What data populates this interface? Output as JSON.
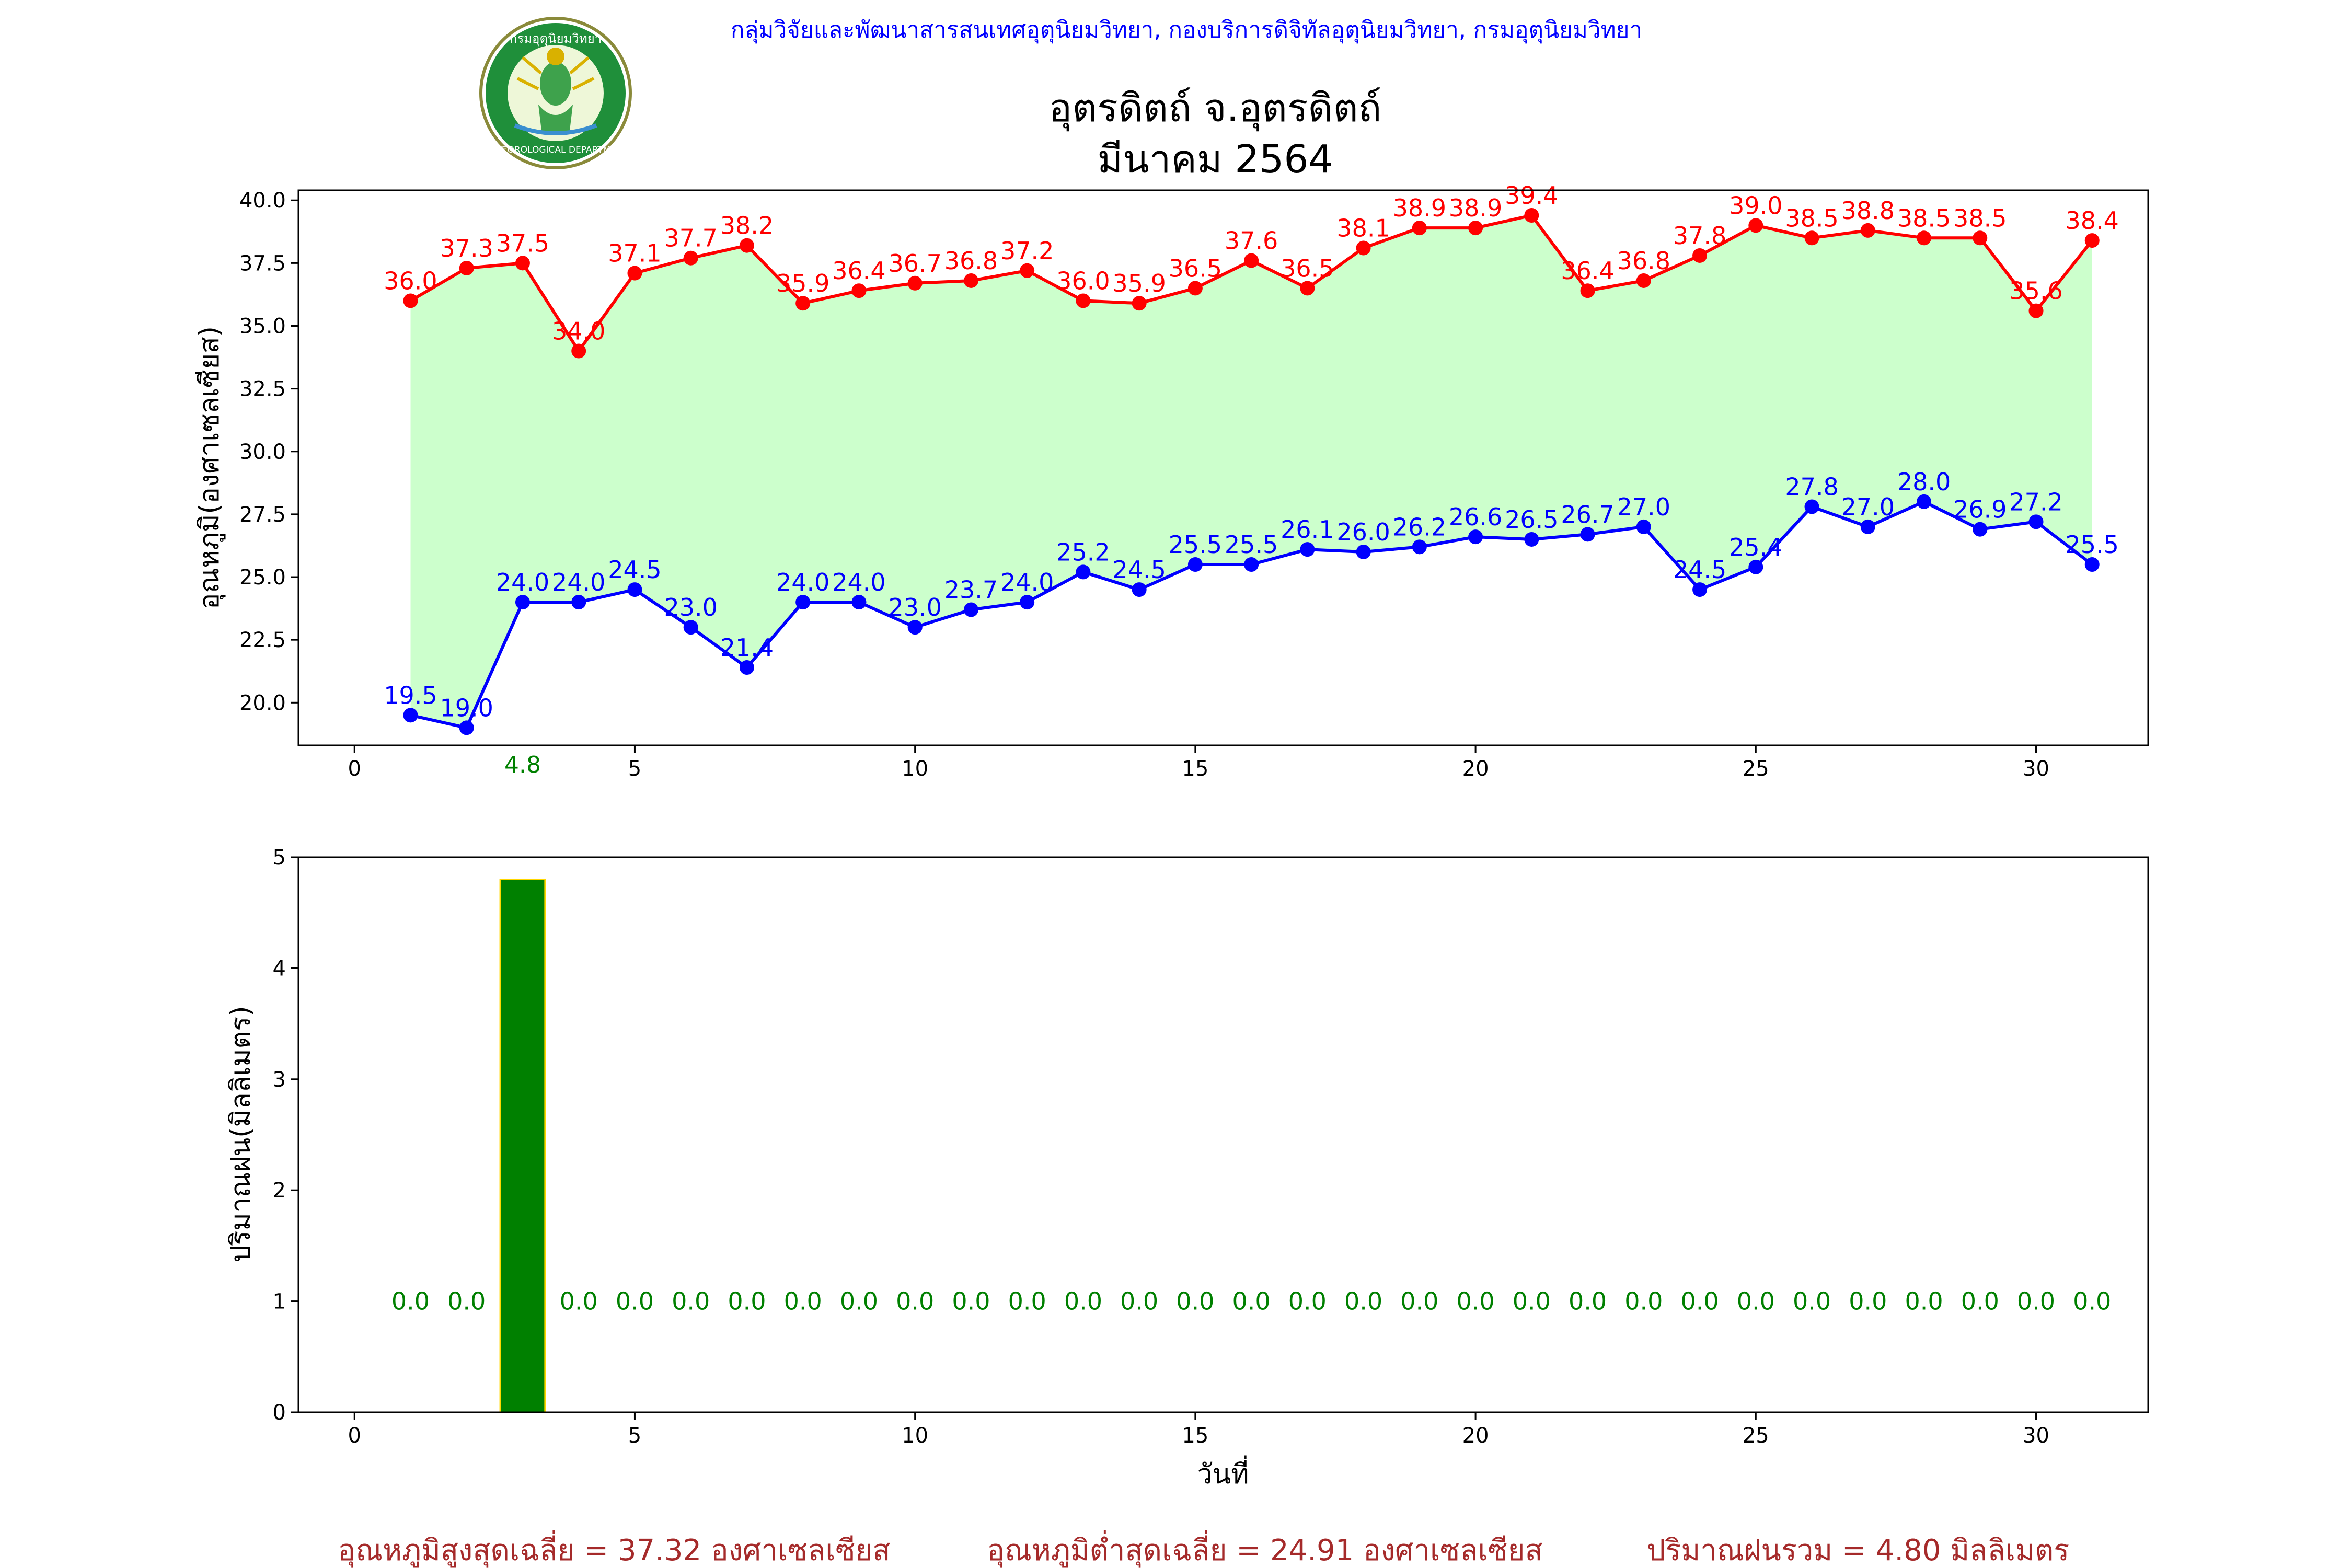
{
  "header": {
    "organization": "กลุ่มวิจัยและพัฒนาสารสนเทศอุตุนิยมวิทยา, กองบริการดิจิทัลอุตุนิยมวิทยา, กรมอุตุนิยมวิทยา",
    "station": "อุตรดิตถ์ จ.อุตรดิตถ์",
    "period": "มีนาคม 2564",
    "logo_text_top": "กรมอุตุนิยมวิทยา",
    "logo_text_bottom": "METEOROLOGICAL DEPARTMENT"
  },
  "colors": {
    "max_series": "#ff0000",
    "min_series": "#0000ff",
    "fill": "#ccffcc",
    "rain_bar": "#008000",
    "rain_edge": "#ffd700",
    "rain_label": "#008000",
    "header_text": "#0000ff",
    "summary_text": "#a52a2a"
  },
  "chart_data": [
    {
      "type": "line",
      "ylabel": "อุณหภูมิ(องศาเซลเซียส)",
      "xlim": [
        -1,
        32
      ],
      "ylim": [
        18.3,
        40.4
      ],
      "xticks": [
        0,
        5,
        10,
        15,
        20,
        25,
        30
      ],
      "yticks": [
        20.0,
        22.5,
        25.0,
        27.5,
        30.0,
        32.5,
        35.0,
        37.5,
        40.0
      ],
      "x": [
        1,
        2,
        3,
        4,
        5,
        6,
        7,
        8,
        9,
        10,
        11,
        12,
        13,
        14,
        15,
        16,
        17,
        18,
        19,
        20,
        21,
        22,
        23,
        24,
        25,
        26,
        27,
        28,
        29,
        30,
        31
      ],
      "series": [
        {
          "key": "max",
          "values": [
            36.0,
            37.3,
            37.5,
            34.0,
            37.1,
            37.7,
            38.2,
            35.9,
            36.4,
            36.7,
            36.8,
            37.2,
            36.0,
            35.9,
            36.5,
            37.6,
            36.5,
            38.1,
            38.9,
            38.9,
            39.4,
            36.4,
            36.8,
            37.8,
            39.0,
            38.5,
            38.8,
            38.5,
            38.5,
            35.6,
            38.4
          ]
        },
        {
          "key": "min",
          "values": [
            19.5,
            19.0,
            24.0,
            24.0,
            24.5,
            23.0,
            21.4,
            24.0,
            24.0,
            23.0,
            23.7,
            24.0,
            25.2,
            24.5,
            25.5,
            25.5,
            26.1,
            26.0,
            26.2,
            26.6,
            26.5,
            26.7,
            27.0,
            24.5,
            25.4,
            27.8,
            27.0,
            28.0,
            26.9,
            27.2,
            25.5
          ]
        }
      ],
      "annotation": {
        "x": 3,
        "text": "4.8"
      }
    },
    {
      "type": "bar",
      "xlabel": "วันที่",
      "ylabel": "ปริมาณฝน(มิลลิเมตร)",
      "xlim": [
        -1,
        32
      ],
      "ylim": [
        0,
        5
      ],
      "xticks": [
        0,
        5,
        10,
        15,
        20,
        25,
        30
      ],
      "yticks": [
        0,
        1,
        2,
        3,
        4,
        5
      ],
      "x": [
        1,
        2,
        3,
        4,
        5,
        6,
        7,
        8,
        9,
        10,
        11,
        12,
        13,
        14,
        15,
        16,
        17,
        18,
        19,
        20,
        21,
        22,
        23,
        24,
        25,
        26,
        27,
        28,
        29,
        30,
        31
      ],
      "values": [
        0.0,
        0.0,
        4.8,
        0.0,
        0.0,
        0.0,
        0.0,
        0.0,
        0.0,
        0.0,
        0.0,
        0.0,
        0.0,
        0.0,
        0.0,
        0.0,
        0.0,
        0.0,
        0.0,
        0.0,
        0.0,
        0.0,
        0.0,
        0.0,
        0.0,
        0.0,
        0.0,
        0.0,
        0.0,
        0.0,
        0.0
      ],
      "label_y": 1
    }
  ],
  "summary": {
    "avg_max": "อุณหภูมิสูงสุดเฉลี่ย = 37.32 องศาเซลเซียส",
    "avg_min": "อุณหภูมิต่ำสุดเฉลี่ย = 24.91 องศาเซลเซียส",
    "total_rain": "ปริมาณฝนรวม = 4.80 มิลลิเมตร"
  }
}
